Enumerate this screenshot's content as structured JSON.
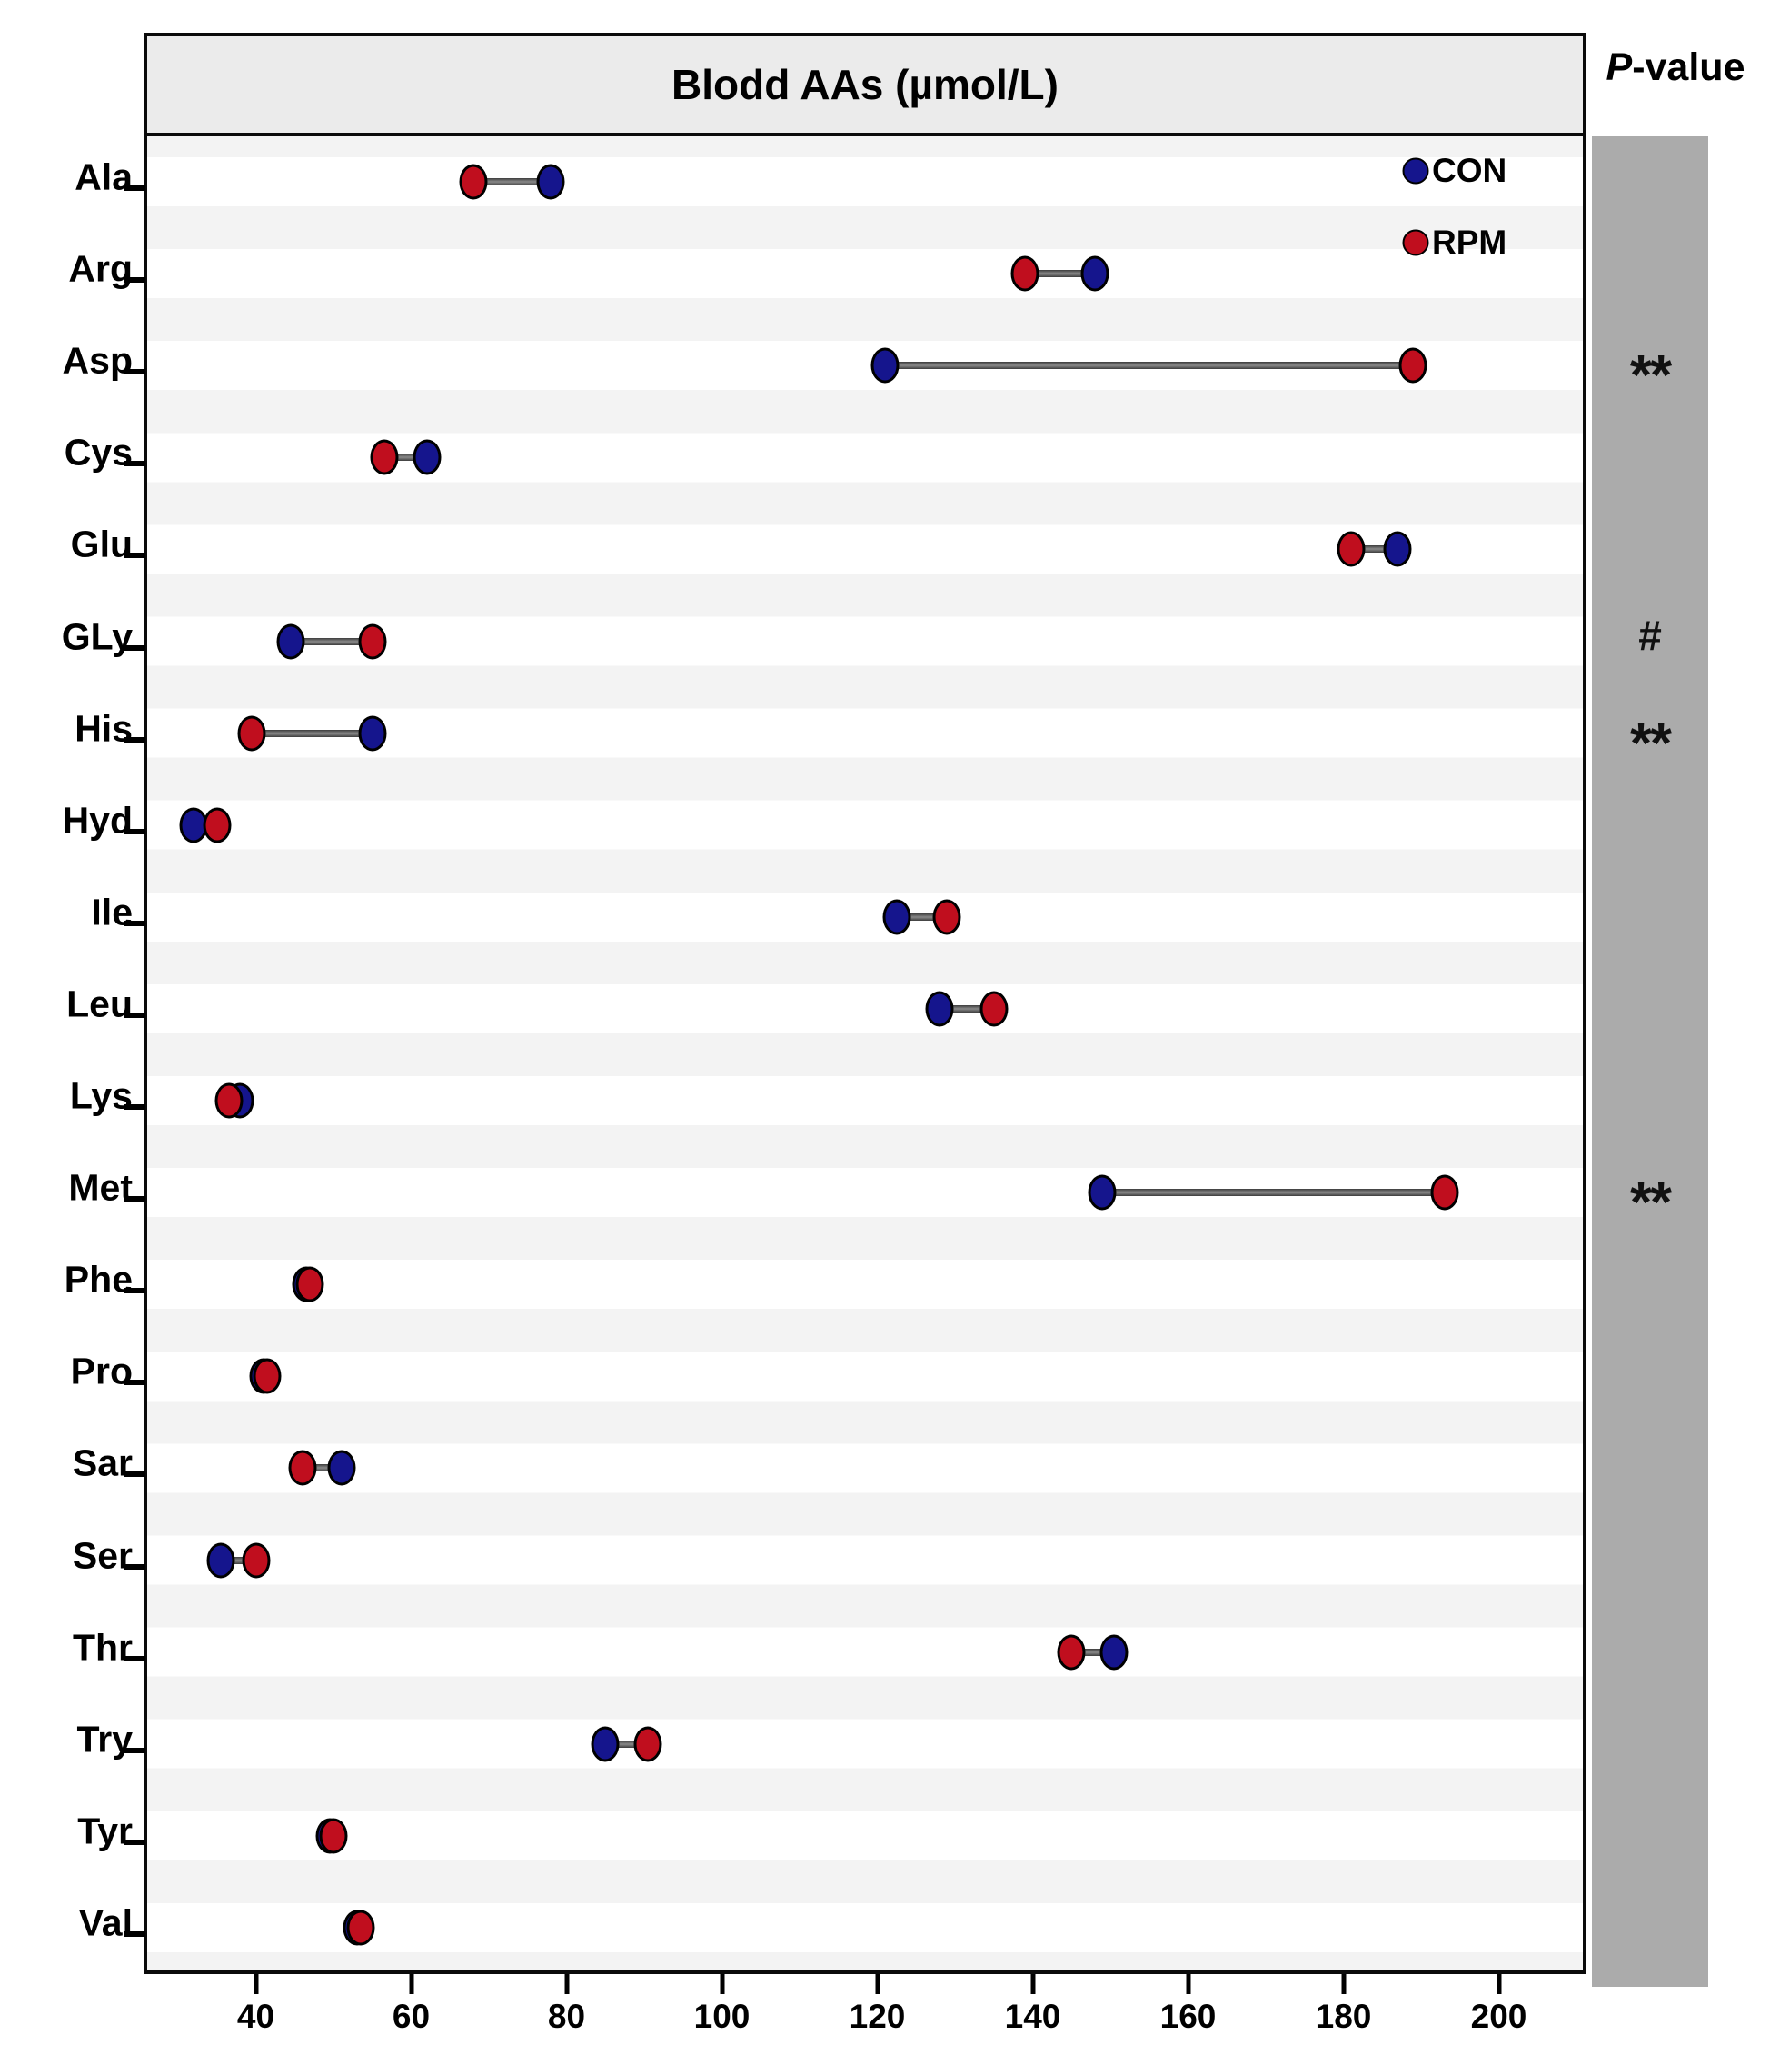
{
  "header": {
    "title": "Blodd AAs (µmol/L)",
    "pvalue_label_p": "P",
    "pvalue_label_rest": "-value"
  },
  "legend": [
    {
      "name": "CON",
      "color": "#15158d"
    },
    {
      "name": "RPM",
      "color": "#c00e1e"
    }
  ],
  "colors": {
    "con": "#15158d",
    "rpm": "#c00e1e",
    "connector": "#6a6a6a",
    "gray_band": "#ababab",
    "title_band": "#ebebeb",
    "stripe": "#f3f3f3"
  },
  "chart_data": {
    "type": "dumbbell",
    "title": "Blodd AAs (µmol/L)",
    "pvalue_column_header": "P-value",
    "categories": [
      "Ala",
      "Arg",
      "Asp",
      "Cys",
      "Glu",
      "GLy",
      "His",
      "Hyd",
      "Ile",
      "Leu",
      "Lys",
      "Met",
      "Phe",
      "Pro",
      "Sar",
      "Ser",
      "Thr",
      "Try",
      "Tyr",
      "Val"
    ],
    "series": [
      {
        "name": "CON",
        "values": [
          78,
          148,
          121,
          62,
          187,
          44.5,
          55,
          32,
          122.5,
          128,
          38,
          149,
          46.5,
          41,
          51,
          35.5,
          150.5,
          85,
          49.5,
          53
        ]
      },
      {
        "name": "RPM",
        "values": [
          68,
          139,
          189,
          56.5,
          181,
          55,
          39.5,
          35,
          129,
          135,
          36.5,
          193,
          47,
          41.5,
          46,
          40,
          145,
          90.5,
          50,
          53.5
        ]
      }
    ],
    "significance": [
      {
        "category": "Asp",
        "symbol": "**"
      },
      {
        "category": "GLy",
        "symbol": "#"
      },
      {
        "category": "His",
        "symbol": "**"
      },
      {
        "category": "Met",
        "symbol": "**"
      }
    ],
    "x_ticks": [
      40,
      60,
      80,
      100,
      120,
      140,
      160,
      180,
      200
    ],
    "xlim": [
      26,
      211
    ],
    "xlabel": "",
    "ylabel": "",
    "grid": false,
    "legend_position": "top-right-inside"
  }
}
